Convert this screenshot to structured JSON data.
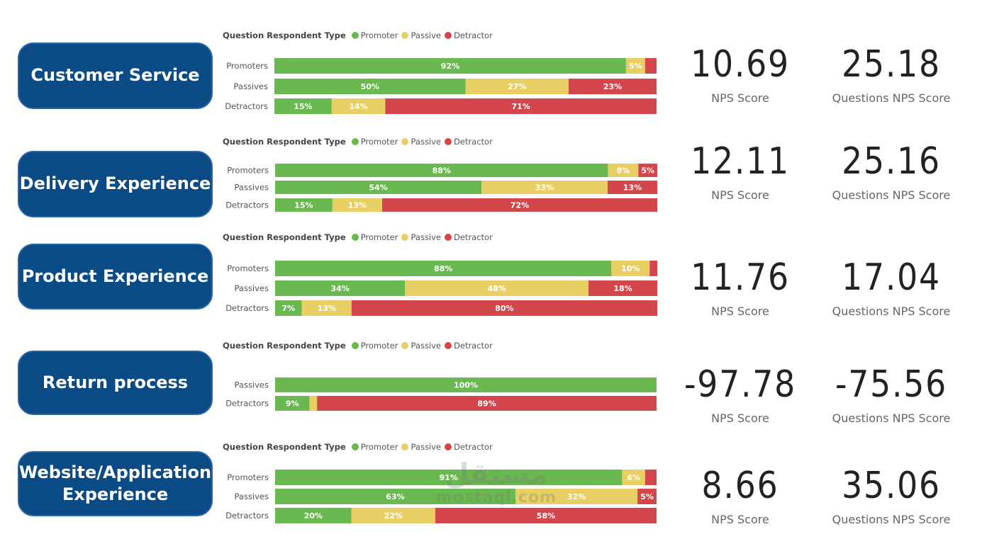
{
  "colors": {
    "promoter": "#6ab950",
    "passive": "#e8cf63",
    "detractor": "#d3464c",
    "category_bg": "#0a4a85"
  },
  "legend": {
    "title": "Question Respondent Type",
    "items": [
      {
        "label": "Promoter",
        "color": "#6ab950"
      },
      {
        "label": "Passive",
        "color": "#e8cf63"
      },
      {
        "label": "Detractor",
        "color": "#d3464c"
      }
    ]
  },
  "sections": [
    {
      "category_lines": [
        "Customer Service"
      ],
      "nps_value": "10.69",
      "nps_label": "NPS Score",
      "qnps_value": "25.18",
      "qnps_label": "Questions NPS Score"
    },
    {
      "category_lines": [
        "Delivery Experience"
      ],
      "nps_value": "12.11",
      "nps_label": "NPS Score",
      "qnps_value": "25.16",
      "qnps_label": "Questions NPS Score"
    },
    {
      "category_lines": [
        "Product Experience"
      ],
      "nps_value": "11.76",
      "nps_label": "NPS Score",
      "qnps_value": "17.04",
      "qnps_label": "Questions NPS Score"
    },
    {
      "category_lines": [
        "Return process"
      ],
      "nps_value": "-97.78",
      "nps_label": "NPS Score",
      "qnps_value": "-75.56",
      "qnps_label": "Questions NPS Score"
    },
    {
      "category_lines": [
        "Website/Application",
        "Experience"
      ],
      "nps_value": "8.66",
      "nps_label": "NPS Score",
      "qnps_value": "35.06",
      "qnps_label": "Questions NPS Score"
    }
  ],
  "chart_data": [
    {
      "type": "bar",
      "orientation": "horizontal",
      "stacked": "100%",
      "categories": [
        "Promoters",
        "Passives",
        "Detractors"
      ],
      "series": [
        {
          "name": "Promoter",
          "values": [
            92,
            50,
            15
          ],
          "labels": [
            "92%",
            "50%",
            "15%"
          ]
        },
        {
          "name": "Passive",
          "values": [
            5,
            27,
            14
          ],
          "labels": [
            "5%",
            "27%",
            "14%"
          ]
        },
        {
          "name": "Detractor",
          "values": [
            3,
            23,
            71
          ],
          "labels": [
            "",
            "23%",
            "71%"
          ]
        }
      ]
    },
    {
      "type": "bar",
      "orientation": "horizontal",
      "stacked": "100%",
      "categories": [
        "Promoters",
        "Passives",
        "Detractors"
      ],
      "series": [
        {
          "name": "Promoter",
          "values": [
            88,
            54,
            15
          ],
          "labels": [
            "88%",
            "54%",
            "15%"
          ]
        },
        {
          "name": "Passive",
          "values": [
            8,
            33,
            13
          ],
          "labels": [
            "8%",
            "33%",
            "13%"
          ]
        },
        {
          "name": "Detractor",
          "values": [
            5,
            13,
            72
          ],
          "labels": [
            "5%",
            "13%",
            "72%"
          ]
        }
      ]
    },
    {
      "type": "bar",
      "orientation": "horizontal",
      "stacked": "100%",
      "categories": [
        "Promoters",
        "Passives",
        "Detractors"
      ],
      "series": [
        {
          "name": "Promoter",
          "values": [
            88,
            34,
            7
          ],
          "labels": [
            "88%",
            "34%",
            "7%"
          ]
        },
        {
          "name": "Passive",
          "values": [
            10,
            48,
            13
          ],
          "labels": [
            "10%",
            "48%",
            "13%"
          ]
        },
        {
          "name": "Detractor",
          "values": [
            2,
            18,
            80
          ],
          "labels": [
            "",
            "18%",
            "80%"
          ]
        }
      ]
    },
    {
      "type": "bar",
      "orientation": "horizontal",
      "stacked": "100%",
      "categories": [
        "Passives",
        "Detractors"
      ],
      "series": [
        {
          "name": "Promoter",
          "values": [
            100,
            9
          ],
          "labels": [
            "100%",
            "9%"
          ]
        },
        {
          "name": "Passive",
          "values": [
            0,
            2
          ],
          "labels": [
            "",
            ""
          ]
        },
        {
          "name": "Detractor",
          "values": [
            0,
            89
          ],
          "labels": [
            "",
            "89%"
          ]
        }
      ]
    },
    {
      "type": "bar",
      "orientation": "horizontal",
      "stacked": "100%",
      "categories": [
        "Promoters",
        "Passives",
        "Detractors"
      ],
      "series": [
        {
          "name": "Promoter",
          "values": [
            91,
            63,
            20
          ],
          "labels": [
            "91%",
            "63%",
            "20%"
          ]
        },
        {
          "name": "Passive",
          "values": [
            6,
            32,
            22
          ],
          "labels": [
            "6%",
            "32%",
            "22%"
          ]
        },
        {
          "name": "Detractor",
          "values": [
            3,
            5,
            58
          ],
          "labels": [
            "",
            "5%",
            "58%"
          ]
        }
      ]
    }
  ],
  "watermark": {
    "arabic": "مستقل",
    "latin": "mostaql.com"
  }
}
